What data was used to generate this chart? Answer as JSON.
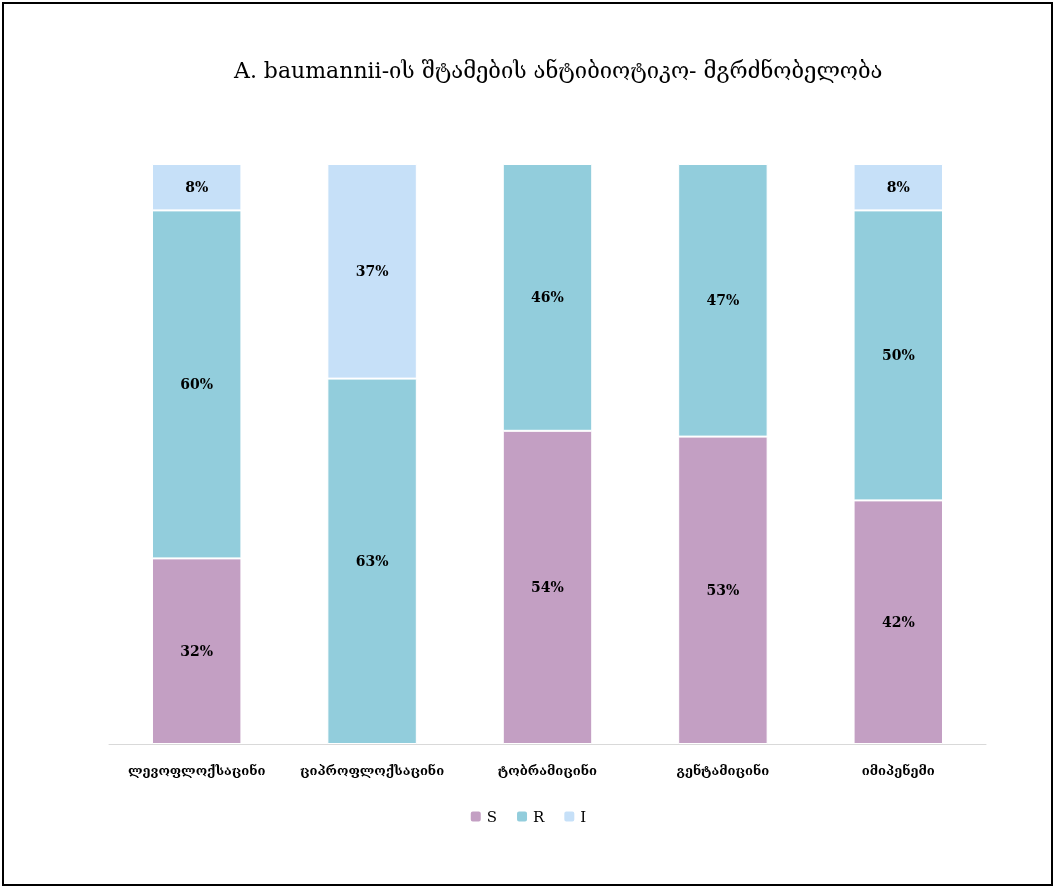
{
  "chart_data": {
    "type": "bar",
    "title": "A. baumannii-ის შტამების ანტიბიოტიკო- მგრძნობელობა",
    "stacked": true,
    "legend": "bottom",
    "categories": [
      "ლევოფლოქსაცინი",
      "ციპროფლოქსაცინი",
      "ტობრამიცინი",
      "გენტამიცინი",
      "იმიპენემი"
    ],
    "series": [
      {
        "name": "S",
        "color": "#c39fc3",
        "values": [
          32,
          null,
          54,
          53,
          42
        ],
        "value_labels": [
          "32%",
          null,
          "54%",
          "53%",
          "42%"
        ]
      },
      {
        "name": "R",
        "color": "#92cddc",
        "values": [
          60,
          63,
          46,
          47,
          50
        ],
        "value_labels": [
          "60%",
          "63%",
          "46%",
          "47%",
          "50%"
        ]
      },
      {
        "name": "I",
        "color": "#c6e0f8",
        "values": [
          8,
          37,
          null,
          null,
          8
        ],
        "value_labels": [
          "8%",
          "37%",
          null,
          null,
          "8%"
        ]
      }
    ]
  }
}
